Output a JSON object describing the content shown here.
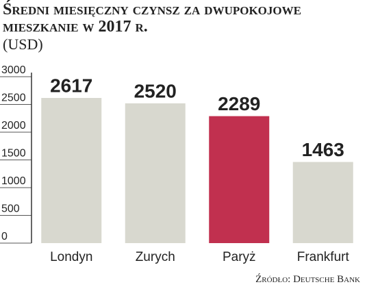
{
  "chart_data": {
    "type": "bar",
    "title": "Średni miesięczny czynsz za dwupokojowe mieszkanie w 2017 r.",
    "subtitle": "(USD)",
    "categories": [
      "Londyn",
      "Zurych",
      "Paryż",
      "Frankfurt"
    ],
    "values": [
      2617,
      2520,
      2289,
      1463
    ],
    "colors": [
      "#d8d8cf",
      "#d8d8cf",
      "#c1304f",
      "#d8d8cf"
    ],
    "ylim": [
      0,
      3000
    ],
    "yticks": [
      0,
      500,
      1000,
      1500,
      2000,
      2500,
      3000
    ],
    "source": "Źródło: Deutsche Bank"
  }
}
